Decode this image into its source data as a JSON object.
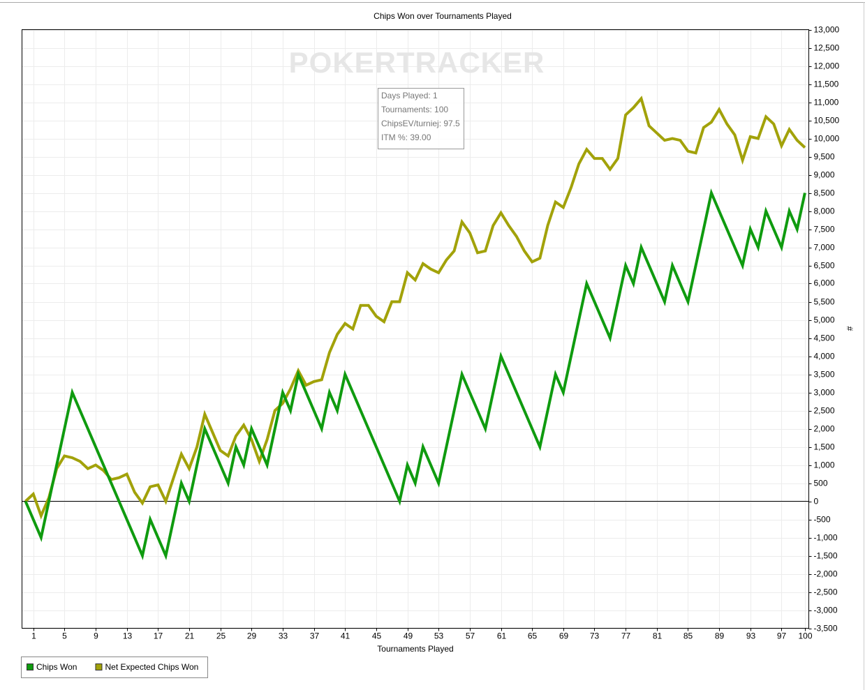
{
  "chart_data": {
    "type": "line",
    "title": "Chips Won over Tournaments Played",
    "x_label": "Tournaments Played",
    "y_label": "#",
    "watermark": "POKERTRACKER",
    "annotations": [
      "Days Played: 1",
      "Tournaments: 100",
      "ChipsEV/turniej: 97.5",
      "ITM %: 39.00"
    ],
    "x": [
      0,
      1,
      2,
      3,
      4,
      5,
      6,
      7,
      8,
      9,
      10,
      11,
      12,
      13,
      14,
      15,
      16,
      17,
      18,
      19,
      20,
      21,
      22,
      23,
      24,
      25,
      26,
      27,
      28,
      29,
      30,
      31,
      32,
      33,
      34,
      35,
      36,
      37,
      38,
      39,
      40,
      41,
      42,
      43,
      44,
      45,
      46,
      47,
      48,
      49,
      50,
      51,
      52,
      53,
      54,
      55,
      56,
      57,
      58,
      59,
      60,
      61,
      62,
      63,
      64,
      65,
      66,
      67,
      68,
      69,
      70,
      71,
      72,
      73,
      74,
      75,
      76,
      77,
      78,
      79,
      80,
      81,
      82,
      83,
      84,
      85,
      86,
      87,
      88,
      89,
      90,
      91,
      92,
      93,
      94,
      95,
      96,
      97,
      98,
      99,
      100
    ],
    "series": [
      {
        "name": "Chips Won",
        "color": "#0f9b0f",
        "values": [
          0,
          -500,
          -1000,
          0,
          1000,
          2000,
          3000,
          2500,
          2000,
          1500,
          1000,
          500,
          0,
          -500,
          -1000,
          -1500,
          -500,
          -1000,
          -1500,
          -500,
          500,
          0,
          1000,
          2000,
          1500,
          1000,
          500,
          1500,
          1000,
          2000,
          1500,
          1000,
          2000,
          3000,
          2500,
          3500,
          3000,
          2500,
          2000,
          3000,
          2500,
          3500,
          3000,
          2500,
          2000,
          1500,
          1000,
          500,
          0,
          1000,
          500,
          1500,
          1000,
          500,
          1500,
          2500,
          3500,
          3000,
          2500,
          2000,
          3000,
          4000,
          3500,
          3000,
          2500,
          2000,
          1500,
          2500,
          3500,
          3000,
          4000,
          5000,
          6000,
          5500,
          5000,
          4500,
          5500,
          6500,
          6000,
          7000,
          6500,
          6000,
          5500,
          6500,
          6000,
          5500,
          6500,
          7500,
          8500,
          8000,
          7500,
          7000,
          6500,
          7500,
          7000,
          8000,
          7500,
          7000,
          8000,
          7500,
          8500
        ]
      },
      {
        "name": "Net Expected Chips Won",
        "color": "#a2a20a",
        "values": [
          0,
          200,
          -400,
          100,
          900,
          1250,
          1200,
          1100,
          900,
          1000,
          850,
          600,
          650,
          750,
          250,
          -50,
          400,
          450,
          0,
          650,
          1300,
          900,
          1500,
          2400,
          1900,
          1400,
          1250,
          1800,
          2100,
          1700,
          1100,
          1700,
          2500,
          2700,
          3100,
          3600,
          3200,
          3300,
          3350,
          4100,
          4600,
          4900,
          4750,
          5400,
          5400,
          5100,
          4950,
          5500,
          5500,
          6300,
          6100,
          6550,
          6400,
          6300,
          6650,
          6900,
          7700,
          7400,
          6850,
          6900,
          7600,
          7950,
          7600,
          7300,
          6900,
          6600,
          6700,
          7600,
          8250,
          8100,
          8650,
          9300,
          9700,
          9450,
          9450,
          9150,
          9450,
          10650,
          10850,
          11100,
          10350,
          10150,
          9950,
          10000,
          9950,
          9650,
          9600,
          10300,
          10450,
          10800,
          10400,
          10100,
          9400,
          10050,
          10000,
          10600,
          10400,
          9800,
          10250,
          9950,
          9750
        ]
      }
    ],
    "xlim": [
      -0.45,
      100.5
    ],
    "xticks": [
      1,
      5,
      9,
      13,
      17,
      21,
      25,
      29,
      33,
      37,
      41,
      45,
      49,
      53,
      57,
      61,
      65,
      69,
      73,
      77,
      81,
      85,
      89,
      93,
      97,
      100
    ],
    "ylim": [
      -3500,
      13000
    ],
    "yticks": [
      {
        "value": 13000,
        "label": "13,000"
      },
      {
        "value": 12500,
        "label": "12,500"
      },
      {
        "value": 12000,
        "label": "12,000"
      },
      {
        "value": 11500,
        "label": "11,500"
      },
      {
        "value": 11000,
        "label": "11,000"
      },
      {
        "value": 10500,
        "label": "10,500"
      },
      {
        "value": 10000,
        "label": "10,000"
      },
      {
        "value": 9500,
        "label": "9,500"
      },
      {
        "value": 9000,
        "label": "9,000"
      },
      {
        "value": 8500,
        "label": "8,500"
      },
      {
        "value": 8000,
        "label": "8,000"
      },
      {
        "value": 7500,
        "label": "7,500"
      },
      {
        "value": 7000,
        "label": "7,000"
      },
      {
        "value": 6500,
        "label": "6,500"
      },
      {
        "value": 6000,
        "label": "6,000"
      },
      {
        "value": 5500,
        "label": "5,500"
      },
      {
        "value": 5000,
        "label": "5,000"
      },
      {
        "value": 4500,
        "label": "4,500"
      },
      {
        "value": 4000,
        "label": "4,000"
      },
      {
        "value": 3500,
        "label": "3,500"
      },
      {
        "value": 3000,
        "label": "3,000"
      },
      {
        "value": 2500,
        "label": "2,500"
      },
      {
        "value": 2000,
        "label": "2,000"
      },
      {
        "value": 1500,
        "label": "1,500"
      },
      {
        "value": 1000,
        "label": "1,000"
      },
      500,
      0,
      -500,
      {
        "value": -1000,
        "label": "-1,000"
      },
      {
        "value": -1500,
        "label": "-1,500"
      },
      {
        "value": -2000,
        "label": "-2,000"
      },
      {
        "value": -2500,
        "label": "-2,500"
      },
      {
        "value": -3000,
        "label": "-3,000"
      },
      {
        "value": -3500,
        "label": "-3,500"
      }
    ],
    "grid": true,
    "legend": "bottom-left"
  }
}
